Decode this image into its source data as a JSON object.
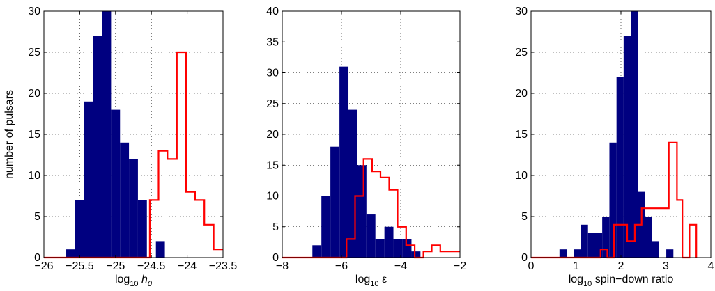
{
  "figure": {
    "ylabel": "number of pulsars"
  },
  "colors": {
    "filled": "#000080",
    "outline": "#ff0000",
    "axes": "#000000",
    "grid": "#000000"
  },
  "chart_data": [
    {
      "type": "histogram",
      "xlabel": {
        "base": "log",
        "sub": "10",
        "tail": "h",
        "tailSub": "0"
      },
      "xlim": [
        -26,
        -23.5
      ],
      "ylim": [
        0,
        30
      ],
      "xticks": [
        -26,
        -25.5,
        -25,
        -24.5,
        -24,
        -23.5
      ],
      "xtick_labels": [
        "−26",
        "−25.5",
        "−25",
        "−24.5",
        "−24",
        "−23.5"
      ],
      "yticks": [
        0,
        5,
        10,
        15,
        20,
        25,
        30
      ],
      "grid": true,
      "series": [
        {
          "style": "filled",
          "bin_width": 0.1251,
          "bins": [
            {
              "x": -25.626,
              "y": 1
            },
            {
              "x": -25.5,
              "y": 7
            },
            {
              "x": -25.375,
              "y": 19
            },
            {
              "x": -25.25,
              "y": 27
            },
            {
              "x": -25.125,
              "y": 30
            },
            {
              "x": -25.0,
              "y": 18
            },
            {
              "x": -24.875,
              "y": 14
            },
            {
              "x": -24.75,
              "y": 12
            },
            {
              "x": -24.625,
              "y": 7
            },
            {
              "x": -24.5,
              "y": 0
            },
            {
              "x": -24.374,
              "y": 2
            }
          ]
        },
        {
          "style": "step",
          "step_x": [
            -26.0,
            -24.522,
            -24.522,
            -24.4,
            -24.4,
            -24.275,
            -24.275,
            -24.144,
            -24.144,
            -24.017,
            -24.017,
            -23.89,
            -23.89,
            -23.761,
            -23.761,
            -23.63,
            -23.63,
            -23.5
          ],
          "step_y": [
            0,
            0,
            7,
            7,
            13,
            13,
            12,
            12,
            25,
            25,
            8,
            8,
            7,
            7,
            4,
            4,
            1,
            1
          ]
        }
      ]
    },
    {
      "type": "histogram",
      "xlabel": {
        "base": "log",
        "sub": "10",
        "tail": "ε",
        "tailSub": ""
      },
      "xlim": [
        -8,
        -2
      ],
      "ylim": [
        0,
        40
      ],
      "xticks": [
        -8,
        -6,
        -4,
        -2
      ],
      "xtick_labels": [
        "−8",
        "−6",
        "−4",
        "−2"
      ],
      "yticks": [
        0,
        5,
        10,
        15,
        20,
        25,
        30,
        35,
        40
      ],
      "grid": true,
      "series": [
        {
          "style": "filled",
          "bin_width": 0.3034,
          "bins": [
            {
              "x": -6.83,
              "y": 2
            },
            {
              "x": -6.526,
              "y": 10
            },
            {
              "x": -6.222,
              "y": 18
            },
            {
              "x": -5.916,
              "y": 31
            },
            {
              "x": -5.613,
              "y": 24
            },
            {
              "x": -5.309,
              "y": 15
            },
            {
              "x": -5.006,
              "y": 7
            },
            {
              "x": -4.702,
              "y": 3
            },
            {
              "x": -4.398,
              "y": 5
            },
            {
              "x": -4.094,
              "y": 3
            },
            {
              "x": -3.788,
              "y": 3
            },
            {
              "x": -3.485,
              "y": 1
            }
          ]
        },
        {
          "style": "step",
          "step_x": [
            -8.0,
            -5.829,
            -5.829,
            -5.542,
            -5.542,
            -5.254,
            -5.254,
            -4.966,
            -4.966,
            -4.682,
            -4.682,
            -4.388,
            -4.388,
            -4.106,
            -4.106,
            -3.817,
            -3.817,
            -3.528,
            -3.528,
            -3.234,
            -3.234,
            -2.952,
            -2.952,
            -2.663,
            -2.663,
            -2.0
          ],
          "step_y": [
            0,
            0,
            3,
            3,
            10,
            10,
            16,
            16,
            14,
            14,
            13,
            13,
            11,
            11,
            5,
            5,
            2,
            2,
            0,
            0,
            1,
            1,
            2,
            2,
            1,
            1
          ]
        }
      ]
    },
    {
      "type": "histogram",
      "xlabel": {
        "base": "log",
        "sub": "10",
        "tail": " spin−down ratio",
        "tailSub": ""
      },
      "xlim": [
        0,
        4
      ],
      "ylim": [
        0,
        30
      ],
      "xticks": [
        0,
        1,
        2,
        3,
        4
      ],
      "xtick_labels": [
        "0",
        "1",
        "2",
        "3",
        "4"
      ],
      "yticks": [
        0,
        5,
        10,
        15,
        20,
        25,
        30
      ],
      "grid": true,
      "series": [
        {
          "style": "filled",
          "bin_width": 0.1585,
          "bins": [
            {
              "x": 0.712,
              "y": 1
            },
            {
              "x": 1.03,
              "y": 1
            },
            {
              "x": 1.188,
              "y": 4
            },
            {
              "x": 1.347,
              "y": 3
            },
            {
              "x": 1.505,
              "y": 3
            },
            {
              "x": 1.663,
              "y": 5
            },
            {
              "x": 1.823,
              "y": 14
            },
            {
              "x": 1.981,
              "y": 22
            },
            {
              "x": 2.139,
              "y": 27
            },
            {
              "x": 2.297,
              "y": 30
            },
            {
              "x": 2.456,
              "y": 8
            },
            {
              "x": 2.614,
              "y": 5
            },
            {
              "x": 2.772,
              "y": 2
            },
            {
              "x": 3.088,
              "y": 1
            }
          ]
        },
        {
          "style": "step",
          "step_x": [
            0.0,
            1.547,
            1.547,
            1.698,
            1.698,
            1.845,
            1.845,
            2.14,
            2.14,
            2.309,
            2.309,
            2.461,
            2.461,
            3.065,
            3.065,
            3.246,
            3.246,
            3.368,
            3.368,
            3.525,
            3.525,
            3.677,
            3.677
          ],
          "step_y": [
            0,
            0,
            1,
            1,
            0,
            0,
            4,
            4,
            2,
            2,
            4,
            4,
            6,
            6,
            14,
            14,
            7,
            7,
            0,
            0,
            4,
            4,
            0
          ]
        }
      ]
    }
  ]
}
